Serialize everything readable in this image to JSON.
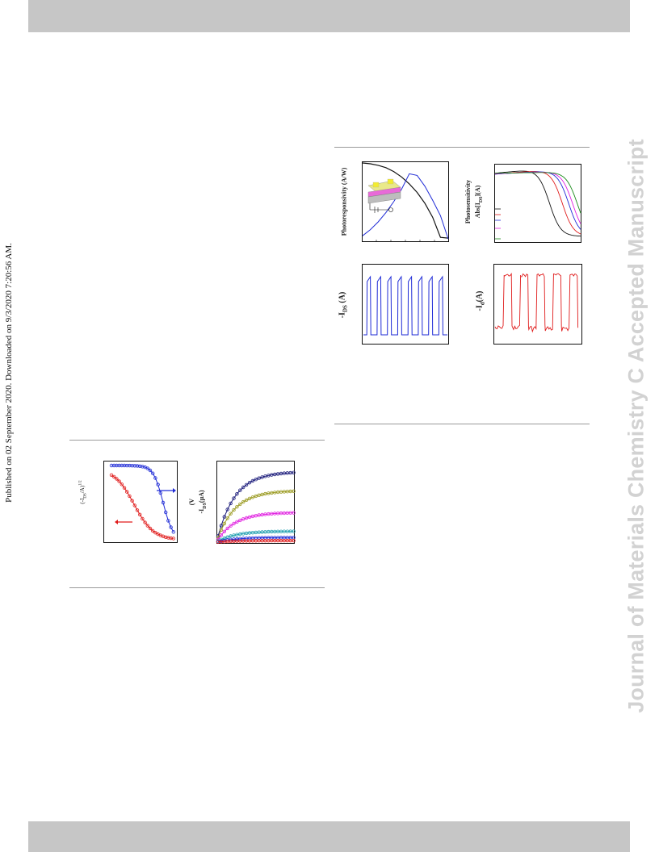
{
  "side_note": "Published on 02 September 2020. Downloaded on 9/3/2020 7:20:56 AM.",
  "watermark": "Journal of Materials Chemistry C Accepted Manuscript",
  "figure_top": {
    "a": {
      "ylabel": "Photoresponsivity (A/W)"
    },
    "b": {
      "ylabel_line1": "Photosensitivity",
      "ylabel_line2": "Abs[I",
      "ylabel_sub": "DS",
      "ylabel_tail": "](A)"
    },
    "c": {
      "ylabel": "-I",
      "ylabel_sub": "DS",
      "ylabel_tail": " (A)"
    },
    "d": {
      "ylabel": "-I",
      "ylabel_sub": "d",
      "ylabel_tail": "(A)"
    }
  },
  "figure_bottom": {
    "a": {
      "ylabel": "(-I",
      "ylabel_sub": "DS",
      "ylabel_tail": "/A)",
      "ylabel_sup": "1/2"
    },
    "b": {
      "ylabel_line1": "(V",
      "ylabel_line2": "-I",
      "ylabel_sub": "DS",
      "ylabel_tail": "(μA)"
    }
  },
  "colors": {
    "band": "#c6c6c6",
    "black": "#111111",
    "blue": "#1f2bd6",
    "red": "#e01c1c",
    "green": "#1a8a1a",
    "magenta": "#e020e0",
    "navy": "#1a1a7a",
    "olive": "#9a9a20",
    "teal": "#20a0b0"
  },
  "chart_data": [
    {
      "type": "line",
      "series": [
        {
          "color": "black",
          "values": [
            100,
            99,
            97,
            94,
            89,
            82,
            73,
            62,
            48,
            30,
            4,
            3
          ]
        },
        {
          "color": "blue",
          "values": [
            6,
            14,
            24,
            36,
            50,
            66,
            86,
            84,
            70,
            52,
            32,
            2
          ]
        }
      ]
    },
    {
      "type": "line",
      "series": [
        {
          "color": "black"
        },
        {
          "color": "red"
        },
        {
          "color": "blue"
        },
        {
          "color": "magenta"
        },
        {
          "color": "green"
        }
      ]
    },
    {
      "type": "line",
      "series": [
        {
          "color": "blue",
          "periods": 8
        }
      ]
    },
    {
      "type": "line",
      "series": [
        {
          "color": "red",
          "periods": 5
        }
      ]
    },
    {
      "type": "scatter",
      "series": [
        {
          "name": "",
          "color": "red"
        },
        {
          "name": "",
          "color": "blue"
        }
      ]
    },
    {
      "type": "scatter",
      "series": [
        {
          "color": "navy",
          "saturation": 0.9
        },
        {
          "color": "olive",
          "saturation": 0.66
        },
        {
          "color": "magenta",
          "saturation": 0.38
        },
        {
          "color": "teal",
          "saturation": 0.14
        },
        {
          "color": "blue",
          "saturation": 0.06
        },
        {
          "color": "red",
          "saturation": 0.02
        }
      ]
    }
  ]
}
